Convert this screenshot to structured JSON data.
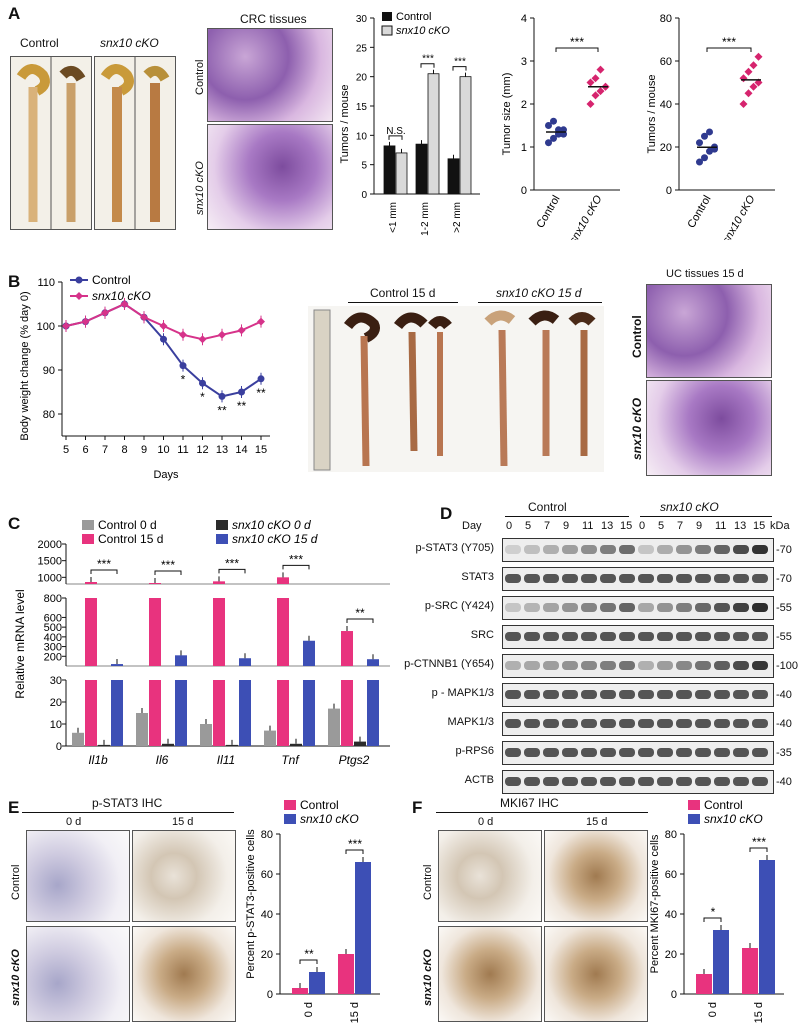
{
  "panels": {
    "a": "A",
    "b": "B",
    "c": "C",
    "d": "D",
    "e": "E",
    "f": "F"
  },
  "panelA": {
    "photo_labels": [
      "Control",
      "snx10 cKO"
    ],
    "crc_title": "CRC tissues",
    "crc_row_labels": [
      "Control",
      "snx10 cKO"
    ],
    "bar_chart": {
      "legend": [
        "Control",
        "snx10 cKO"
      ],
      "ylabel": "Tumors / mouse",
      "yticks": [
        "0",
        "5",
        "10",
        "15",
        "20",
        "25",
        "30"
      ],
      "categories": [
        "<1 mm",
        "1-2 mm",
        ">2 mm"
      ],
      "sig": [
        "N.S.",
        "***",
        "***"
      ]
    },
    "scatter1": {
      "ylabel": "Tumor size (mm)",
      "yticks": [
        "0",
        "1",
        "2",
        "3",
        "4"
      ],
      "xlabels": [
        "Control",
        "snx10 cKO"
      ],
      "sig": "***"
    },
    "scatter2": {
      "ylabel": "Tumors / mouse",
      "yticks": [
        "0",
        "20",
        "40",
        "60",
        "80"
      ],
      "xlabels": [
        "Control",
        "snx10 cKO"
      ],
      "sig": "***"
    }
  },
  "panelB": {
    "legend": [
      "Control",
      "snx10 cKO"
    ],
    "ylabel": "Body weight change (% day 0)",
    "xlabel": "Days",
    "yticks": [
      "80",
      "90",
      "100",
      "110"
    ],
    "xticks": [
      "5",
      "6",
      "7",
      "8",
      "9",
      "10",
      "11",
      "12",
      "13",
      "14",
      "15"
    ],
    "sig": [
      {
        "day": 11,
        "text": "*"
      },
      {
        "day": 12,
        "text": "*"
      },
      {
        "day": 13,
        "text": "**"
      },
      {
        "day": 14,
        "text": "**"
      },
      {
        "day": 15,
        "text": "**"
      }
    ],
    "photo_labels": [
      "Control 15 d",
      "snx10 cKO 15 d"
    ],
    "uc_title": "UC tissues  15 d",
    "uc_row_labels": [
      "Control",
      "snx10 cKO"
    ]
  },
  "panelC": {
    "legend": [
      "Control 0 d",
      "Control 15 d",
      "snx10 cKO 0 d",
      "snx10 cKO 15 d"
    ],
    "ylabel": "Relative mRNA level",
    "yticks_top": [
      "1000",
      "1500",
      "2000"
    ],
    "yticks_mid": [
      "200",
      "300",
      "400",
      "500",
      "600",
      "800"
    ],
    "yticks_bottom": [
      "0",
      "10",
      "20",
      "30"
    ],
    "genes": [
      "Il1b",
      "Il6",
      "Il11",
      "Tnf",
      "Ptgs2"
    ],
    "sig": [
      "***",
      "***",
      "***",
      "***",
      "**"
    ]
  },
  "panelD": {
    "group_labels": [
      "Control",
      "snx10 cKO"
    ],
    "day_label": "Day",
    "days": [
      "0",
      "5",
      "7",
      "9",
      "11",
      "13",
      "15",
      "0",
      "5",
      "7",
      "9",
      "11",
      "13",
      "15"
    ],
    "kda_label": "kDa",
    "rows": [
      {
        "label": "p-STAT3 (Y705)",
        "kda": "-70"
      },
      {
        "label": "STAT3",
        "kda": "-70"
      },
      {
        "label": "p-SRC (Y424)",
        "kda": "-55"
      },
      {
        "label": "SRC",
        "kda": "-55"
      },
      {
        "label": "p-CTNNB1 (Y654)",
        "kda": "-100"
      },
      {
        "label": "p - MAPK1/3",
        "kda": "-40"
      },
      {
        "label": "MAPK1/3",
        "kda": "-40"
      },
      {
        "label": "p-RPS6",
        "kda": "-35"
      },
      {
        "label": "ACTB",
        "kda": "-40"
      }
    ]
  },
  "panelE": {
    "title": "p-STAT3 IHC",
    "col_labels": [
      "0 d",
      "15 d"
    ],
    "row_labels": [
      "Control",
      "snx10 cKO"
    ],
    "legend": [
      "Control",
      "snx10 cKO"
    ],
    "ylabel": "Percent p-STAT3-positive cells",
    "yticks": [
      "0",
      "20",
      "40",
      "60",
      "80"
    ],
    "xlabels": [
      "0 d",
      "15 d"
    ],
    "sig": [
      "**",
      "***"
    ]
  },
  "panelF": {
    "title": "MKI67 IHC",
    "col_labels": [
      "0 d",
      "15 d"
    ],
    "row_labels": [
      "Control",
      "snx10 cKO"
    ],
    "legend": [
      "Control",
      "snx10 cKO"
    ],
    "ylabel": "Percent MKI67-positive cells",
    "yticks": [
      "0",
      "20",
      "40",
      "60",
      "80"
    ],
    "xlabels": [
      "0 d",
      "15 d"
    ],
    "sig": [
      "*",
      "***"
    ]
  },
  "chart_data": [
    {
      "type": "bar",
      "categories": [
        "<1 mm",
        "1-2 mm",
        ">2 mm"
      ],
      "series": [
        {
          "name": "Control",
          "values": [
            8.2,
            8.5,
            6.0
          ]
        },
        {
          "name": "snx10 cKO",
          "values": [
            7.0,
            20.5,
            20.0
          ]
        }
      ],
      "ylabel": "Tumors / mouse",
      "ylim": [
        0,
        30
      ],
      "colors": [
        "#111111",
        "#d9d9d9"
      ]
    },
    {
      "type": "scatter",
      "categories": [
        "Control",
        "snx10 cKO"
      ],
      "series": [
        {
          "name": "Control",
          "values": [
            1.1,
            1.2,
            1.3,
            1.4,
            1.5,
            1.6,
            1.4,
            1.3
          ]
        },
        {
          "name": "snx10 cKO",
          "values": [
            2.0,
            2.2,
            2.3,
            2.4,
            2.5,
            2.6,
            2.8,
            2.4
          ]
        }
      ],
      "ylabel": "Tumor size (mm)",
      "ylim": [
        0,
        4
      ],
      "colors": [
        "#2f3a8f",
        "#d6246e"
      ]
    },
    {
      "type": "scatter",
      "categories": [
        "Control",
        "snx10 cKO"
      ],
      "series": [
        {
          "name": "Control",
          "values": [
            13,
            15,
            18,
            20,
            22,
            25,
            27,
            19
          ]
        },
        {
          "name": "snx10 cKO",
          "values": [
            40,
            45,
            48,
            50,
            52,
            55,
            58,
            62
          ]
        }
      ],
      "ylabel": "Tumors / mouse",
      "ylim": [
        0,
        80
      ],
      "colors": [
        "#2f3a8f",
        "#d6246e"
      ]
    },
    {
      "type": "line",
      "x": [
        5,
        6,
        7,
        8,
        9,
        10,
        11,
        12,
        13,
        14,
        15
      ],
      "series": [
        {
          "name": "Control",
          "values": [
            100,
            101,
            103,
            105,
            102,
            97,
            91,
            87,
            84,
            85,
            88
          ]
        },
        {
          "name": "snx10 cKO",
          "values": [
            100,
            101,
            103,
            105,
            102,
            100,
            98,
            97,
            98,
            99,
            101
          ]
        }
      ],
      "xlabel": "Days",
      "ylabel": "Body weight change (% day 0)",
      "ylim": [
        75,
        110
      ],
      "colors": [
        "#3a3f9e",
        "#d6338a"
      ]
    },
    {
      "type": "bar",
      "categories": [
        "Il1b",
        "Il6",
        "Il11",
        "Tnf",
        "Ptgs2"
      ],
      "series": [
        {
          "name": "Control 0 d",
          "values": [
            6,
            15,
            10,
            7,
            17
          ]
        },
        {
          "name": "Control 15 d",
          "values": [
            860,
            830,
            880,
            1000,
            460
          ]
        },
        {
          "name": "snx10 cKO 0 d",
          "values": [
            0.5,
            1,
            0.5,
            1,
            2
          ]
        },
        {
          "name": "snx10 cKO 15 d",
          "values": [
            120,
            210,
            180,
            360,
            170
          ]
        }
      ],
      "ylabel": "Relative mRNA level",
      "colors": [
        "#9a9a9a",
        "#e8337e",
        "#2b2b2b",
        "#3d4fb5"
      ]
    },
    {
      "type": "bar",
      "categories": [
        "0 d",
        "15 d"
      ],
      "series": [
        {
          "name": "Control",
          "values": [
            3,
            20
          ]
        },
        {
          "name": "snx10 cKO",
          "values": [
            11,
            66
          ]
        }
      ],
      "ylabel": "Percent p-STAT3-positive cells",
      "ylim": [
        0,
        80
      ],
      "colors": [
        "#e8337e",
        "#3d4fb5"
      ]
    },
    {
      "type": "bar",
      "categories": [
        "0 d",
        "15 d"
      ],
      "series": [
        {
          "name": "Control",
          "values": [
            10,
            23
          ]
        },
        {
          "name": "snx10 cKO",
          "values": [
            32,
            67
          ]
        }
      ],
      "ylabel": "Percent MKI67-positive cells",
      "ylim": [
        0,
        80
      ],
      "colors": [
        "#e8337e",
        "#3d4fb5"
      ]
    }
  ]
}
